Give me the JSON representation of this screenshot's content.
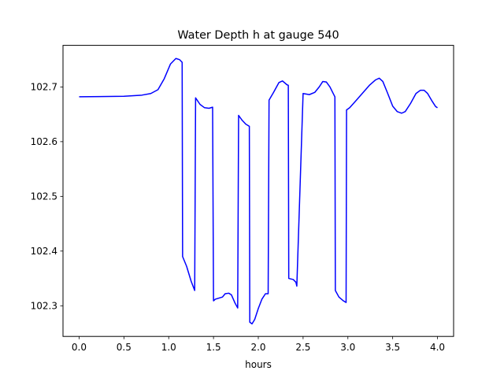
{
  "chart_data": {
    "type": "line",
    "title": "Water Depth h at gauge 540",
    "xlabel": "hours",
    "ylabel": "",
    "xlim": [
      -0.18,
      4.18
    ],
    "ylim": [
      102.244,
      102.776
    ],
    "grid": false,
    "legend": "none",
    "xticks": [
      0.0,
      0.5,
      1.0,
      1.5,
      2.0,
      2.5,
      3.0,
      3.5,
      4.0
    ],
    "xtick_labels": [
      "0.0",
      "0.5",
      "1.0",
      "1.5",
      "2.0",
      "2.5",
      "3.0",
      "3.5",
      "4.0"
    ],
    "yticks": [
      102.3,
      102.4,
      102.5,
      102.6,
      102.7
    ],
    "ytick_labels": [
      "102.3",
      "102.4",
      "102.5",
      "102.6",
      "102.7"
    ],
    "series": [
      {
        "color": "#0000ff",
        "x": [
          0.0,
          0.5,
          0.7,
          0.8,
          0.88,
          0.95,
          1.02,
          1.08,
          1.12,
          1.15,
          1.155,
          1.2,
          1.25,
          1.29,
          1.3,
          1.35,
          1.4,
          1.45,
          1.49,
          1.5,
          1.52,
          1.56,
          1.6,
          1.63,
          1.67,
          1.7,
          1.74,
          1.77,
          1.78,
          1.82,
          1.86,
          1.9,
          1.905,
          1.93,
          1.96,
          2.0,
          2.04,
          2.08,
          2.11,
          2.12,
          2.17,
          2.23,
          2.27,
          2.32,
          2.335,
          2.34,
          2.39,
          2.42,
          2.43,
          2.5,
          2.57,
          2.63,
          2.68,
          2.72,
          2.76,
          2.8,
          2.83,
          2.855,
          2.86,
          2.9,
          2.95,
          2.98,
          2.985,
          3.02,
          3.08,
          3.16,
          3.24,
          3.31,
          3.35,
          3.39,
          3.44,
          3.5,
          3.55,
          3.6,
          3.64,
          3.7,
          3.76,
          3.81,
          3.85,
          3.89,
          3.94,
          3.98,
          4.0
        ],
        "y": [
          102.682,
          102.683,
          102.685,
          102.688,
          102.695,
          102.715,
          102.742,
          102.752,
          102.75,
          102.745,
          102.39,
          102.372,
          102.345,
          102.328,
          102.68,
          102.668,
          102.662,
          102.661,
          102.663,
          102.309,
          102.312,
          102.314,
          102.316,
          102.322,
          102.323,
          102.32,
          102.305,
          102.296,
          102.648,
          102.639,
          102.632,
          102.628,
          102.27,
          102.267,
          102.275,
          102.295,
          102.312,
          102.322,
          102.322,
          102.676,
          102.69,
          102.708,
          102.711,
          102.704,
          102.703,
          102.35,
          102.348,
          102.343,
          102.336,
          102.688,
          102.686,
          102.69,
          102.7,
          102.71,
          102.709,
          102.7,
          102.69,
          102.682,
          102.328,
          102.316,
          102.309,
          102.306,
          102.658,
          102.662,
          102.673,
          102.688,
          102.703,
          102.713,
          102.716,
          102.71,
          102.69,
          102.665,
          102.655,
          102.652,
          102.655,
          102.67,
          102.688,
          102.694,
          102.694,
          102.688,
          102.674,
          102.664,
          102.662
        ]
      }
    ]
  }
}
